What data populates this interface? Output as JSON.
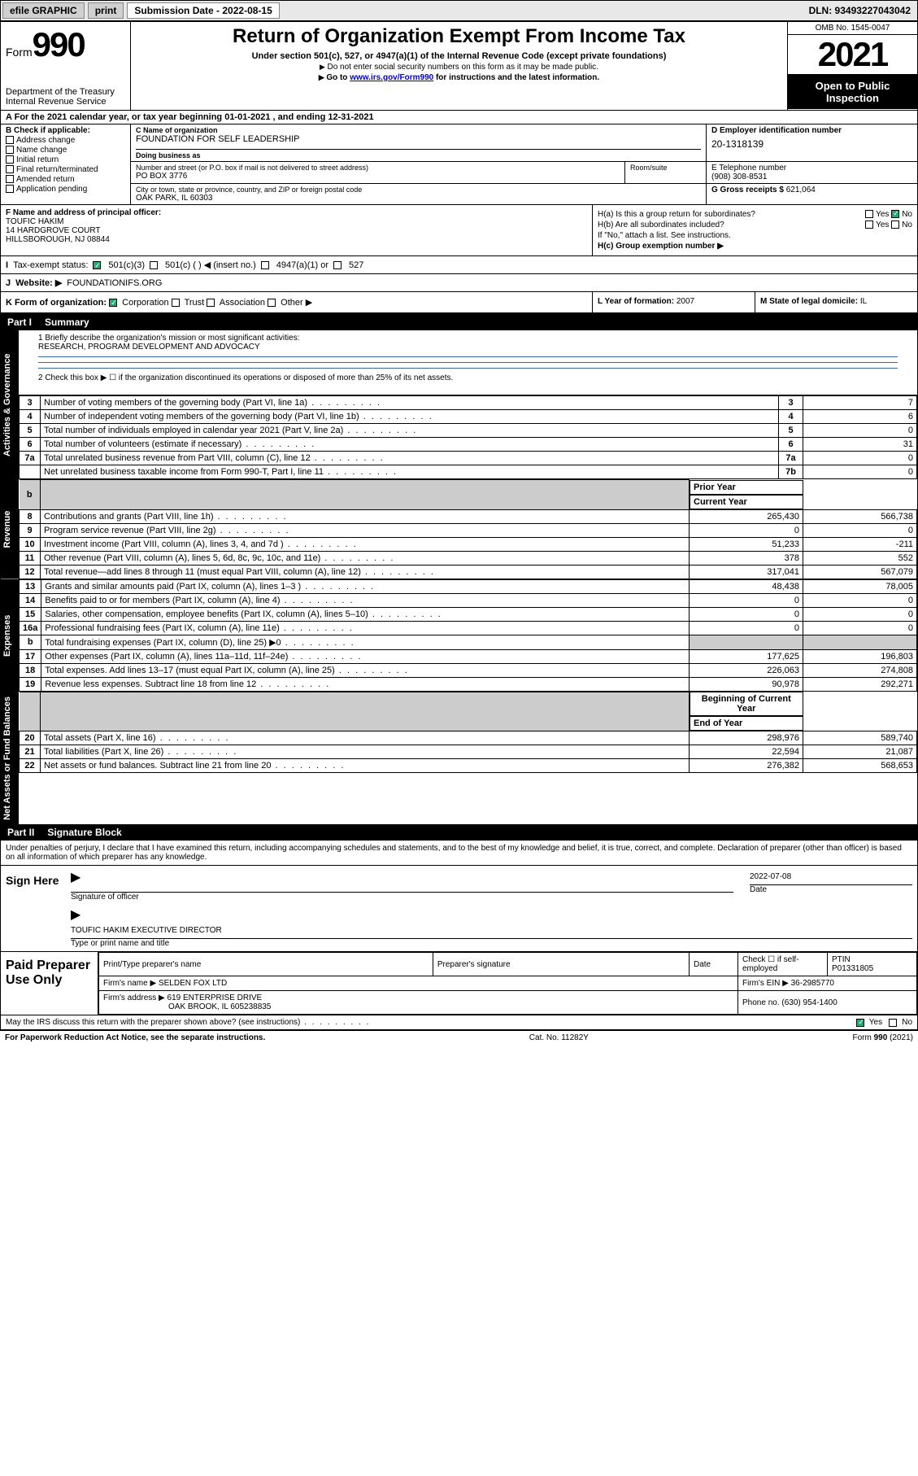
{
  "topbar": {
    "efile": "efile GRAPHIC",
    "print": "print",
    "sub_label": "Submission Date - 2022-08-15",
    "dln": "DLN: 93493227043042"
  },
  "header": {
    "form_word": "Form",
    "form_num": "990",
    "dept": "Department of the Treasury",
    "irs": "Internal Revenue Service",
    "title": "Return of Organization Exempt From Income Tax",
    "sub1": "Under section 501(c), 527, or 4947(a)(1) of the Internal Revenue Code (except private foundations)",
    "sub2": "Do not enter social security numbers on this form as it may be made public.",
    "sub3_pre": "Go to ",
    "sub3_link": "www.irs.gov/Form990",
    "sub3_post": " for instructions and the latest information.",
    "omb": "OMB No. 1545-0047",
    "year": "2021",
    "open": "Open to Public Inspection"
  },
  "lineA": "For the 2021 calendar year, or tax year beginning 01-01-2021   , and ending 12-31-2021",
  "boxB": {
    "title": "B Check if applicable:",
    "opts": [
      "Address change",
      "Name change",
      "Initial return",
      "Final return/terminated",
      "Amended return",
      "Application pending"
    ]
  },
  "boxC": {
    "name_lbl": "C Name of organization",
    "name": "FOUNDATION FOR SELF LEADERSHIP",
    "dba_lbl": "Doing business as",
    "dba": "",
    "addr_lbl": "Number and street (or P.O. box if mail is not delivered to street address)",
    "suite_lbl": "Room/suite",
    "addr": "PO BOX 3776",
    "city_lbl": "City or town, state or province, country, and ZIP or foreign postal code",
    "city": "OAK PARK, IL  60303"
  },
  "boxD": {
    "lbl": "D Employer identification number",
    "val": "20-1318139"
  },
  "boxE": {
    "lbl": "E Telephone number",
    "val": "(908) 308-8531"
  },
  "boxG": {
    "lbl": "G Gross receipts $",
    "val": "621,064"
  },
  "officer": {
    "lbl": "F Name and address of principal officer:",
    "name": "TOUFIC HAKIM",
    "addr1": "14 HARDGROVE COURT",
    "addr2": "HILLSBOROUGH, NJ  08844"
  },
  "boxH": {
    "ha": "H(a)  Is this a group return for subordinates?",
    "hb": "H(b)  Are all subordinates included?",
    "hb_note": "If \"No,\" attach a list. See instructions.",
    "hc": "H(c)  Group exemption number ▶"
  },
  "lineI": {
    "lbl": "Tax-exempt status:",
    "opts": [
      "501(c)(3)",
      "501(c) (  ) ◀ (insert no.)",
      "4947(a)(1) or",
      "527"
    ]
  },
  "lineJ": {
    "lbl": "Website: ▶",
    "val": "FOUNDATIONIFS.ORG"
  },
  "lineK": {
    "lbl": "K Form of organization:",
    "opts": [
      "Corporation",
      "Trust",
      "Association",
      "Other ▶"
    ],
    "L_lbl": "L Year of formation:",
    "L_val": "2007",
    "M_lbl": "M State of legal domicile:",
    "M_val": "IL"
  },
  "part1": {
    "num": "Part I",
    "title": "Summary"
  },
  "mission": {
    "q": "1  Briefly describe the organization's mission or most significant activities:",
    "a": "RESEARCH, PROGRAM DEVELOPMENT AND ADVOCACY"
  },
  "line2": "2   Check this box ▶ ☐  if the organization discontinued its operations or disposed of more than 25% of its net assets.",
  "gov_rows": [
    {
      "n": "3",
      "d": "Number of voting members of the governing body (Part VI, line 1a)",
      "box": "3",
      "v": "7"
    },
    {
      "n": "4",
      "d": "Number of independent voting members of the governing body (Part VI, line 1b)",
      "box": "4",
      "v": "6"
    },
    {
      "n": "5",
      "d": "Total number of individuals employed in calendar year 2021 (Part V, line 2a)",
      "box": "5",
      "v": "0"
    },
    {
      "n": "6",
      "d": "Total number of volunteers (estimate if necessary)",
      "box": "6",
      "v": "31"
    },
    {
      "n": "7a",
      "d": "Total unrelated business revenue from Part VIII, column (C), line 12",
      "box": "7a",
      "v": "0"
    },
    {
      "n": "",
      "d": "Net unrelated business taxable income from Form 990-T, Part I, line 11",
      "box": "7b",
      "v": "0"
    }
  ],
  "two_col_hdr": {
    "prior": "Prior Year",
    "current": "Current Year"
  },
  "revenue_rows": [
    {
      "n": "8",
      "d": "Contributions and grants (Part VIII, line 1h)",
      "p": "265,430",
      "c": "566,738"
    },
    {
      "n": "9",
      "d": "Program service revenue (Part VIII, line 2g)",
      "p": "0",
      "c": "0"
    },
    {
      "n": "10",
      "d": "Investment income (Part VIII, column (A), lines 3, 4, and 7d )",
      "p": "51,233",
      "c": "-211"
    },
    {
      "n": "11",
      "d": "Other revenue (Part VIII, column (A), lines 5, 6d, 8c, 9c, 10c, and 11e)",
      "p": "378",
      "c": "552"
    },
    {
      "n": "12",
      "d": "Total revenue—add lines 8 through 11 (must equal Part VIII, column (A), line 12)",
      "p": "317,041",
      "c": "567,079"
    }
  ],
  "expense_rows": [
    {
      "n": "13",
      "d": "Grants and similar amounts paid (Part IX, column (A), lines 1–3 )",
      "p": "48,438",
      "c": "78,005"
    },
    {
      "n": "14",
      "d": "Benefits paid to or for members (Part IX, column (A), line 4)",
      "p": "0",
      "c": "0"
    },
    {
      "n": "15",
      "d": "Salaries, other compensation, employee benefits (Part IX, column (A), lines 5–10)",
      "p": "0",
      "c": "0"
    },
    {
      "n": "16a",
      "d": "Professional fundraising fees (Part IX, column (A), line 11e)",
      "p": "0",
      "c": "0"
    },
    {
      "n": "b",
      "d": "Total fundraising expenses (Part IX, column (D), line 25) ▶0",
      "p": "",
      "c": "",
      "grey": true
    },
    {
      "n": "17",
      "d": "Other expenses (Part IX, column (A), lines 11a–11d, 11f–24e)",
      "p": "177,625",
      "c": "196,803"
    },
    {
      "n": "18",
      "d": "Total expenses. Add lines 13–17 (must equal Part IX, column (A), line 25)",
      "p": "226,063",
      "c": "274,808"
    },
    {
      "n": "19",
      "d": "Revenue less expenses. Subtract line 18 from line 12",
      "p": "90,978",
      "c": "292,271"
    }
  ],
  "na_hdr": {
    "begin": "Beginning of Current Year",
    "end": "End of Year"
  },
  "na_rows": [
    {
      "n": "20",
      "d": "Total assets (Part X, line 16)",
      "p": "298,976",
      "c": "589,740"
    },
    {
      "n": "21",
      "d": "Total liabilities (Part X, line 26)",
      "p": "22,594",
      "c": "21,087"
    },
    {
      "n": "22",
      "d": "Net assets or fund balances. Subtract line 21 from line 20",
      "p": "276,382",
      "c": "568,653"
    }
  ],
  "tabs": {
    "gov": "Activities & Governance",
    "rev": "Revenue",
    "exp": "Expenses",
    "na": "Net Assets or Fund Balances"
  },
  "part2": {
    "num": "Part II",
    "title": "Signature Block"
  },
  "sig_decl": "Under penalties of perjury, I declare that I have examined this return, including accompanying schedules and statements, and to the best of my knowledge and belief, it is true, correct, and complete. Declaration of preparer (other than officer) is based on all information of which preparer has any knowledge.",
  "sign": {
    "here": "Sign Here",
    "sigof": "Signature of officer",
    "date_lbl": "Date",
    "date": "2022-07-08",
    "typed": "TOUFIC HAKIM  EXECUTIVE DIRECTOR",
    "typed_lbl": "Type or print name and title"
  },
  "prep": {
    "lbl": "Paid Preparer Use Only",
    "h1": "Print/Type preparer's name",
    "h2": "Preparer's signature",
    "h3": "Date",
    "h4_pre": "Check ☐ if self-employed",
    "h5": "PTIN",
    "ptin": "P01331805",
    "firm_lbl": "Firm's name   ▶",
    "firm": "SELDEN FOX LTD",
    "ein_lbl": "Firm's EIN ▶",
    "ein": "36-2985770",
    "addr_lbl": "Firm's address ▶",
    "addr1": "619 ENTERPRISE DRIVE",
    "addr2": "OAK BROOK, IL  605238835",
    "phone_lbl": "Phone no.",
    "phone": "(630) 954-1400"
  },
  "may_discuss": "May the IRS discuss this return with the preparer shown above? (see instructions)",
  "footer": {
    "pra": "For Paperwork Reduction Act Notice, see the separate instructions.",
    "cat": "Cat. No. 11282Y",
    "form": "Form 990 (2021)"
  },
  "colors": {
    "link": "#0000cc",
    "rule": "#3a64b0",
    "check": "#2a7"
  }
}
